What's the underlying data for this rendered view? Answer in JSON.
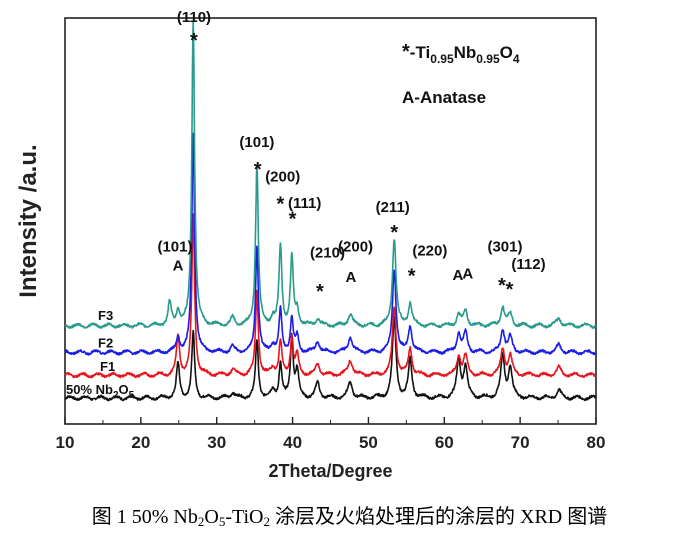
{
  "chart_data": {
    "type": "line",
    "title": "",
    "xlabel": "2Theta/Degree",
    "ylabel": "Intensity /a.u.",
    "xlim": [
      10,
      80
    ],
    "xticks": [
      10,
      20,
      30,
      40,
      50,
      60,
      70,
      80
    ],
    "yticks": [],
    "grid": false,
    "legend": {
      "placement": "top-right",
      "entries": [
        {
          "symbol": "*",
          "text": "-Ti",
          "sub1": "0.95",
          "text2": "Nb",
          "sub2": "0.95",
          "text3": "O",
          "sub3": "4"
        },
        {
          "symbol": "",
          "text": "A-Anatase"
        }
      ]
    },
    "series": [
      {
        "name": "50% Nb",
        "name_sub": "2",
        "name_tail": "O",
        "name_sub2": "5",
        "color": "#111111",
        "offset": 0.0
      },
      {
        "name": "F1",
        "color": "#e8141c",
        "offset": 0.06
      },
      {
        "name": "F2",
        "color": "#1c1ce8",
        "offset": 0.12
      },
      {
        "name": "F3",
        "color": "#2a9a8c",
        "offset": 0.19
      }
    ],
    "peaks": [
      {
        "x": 24.9,
        "h": [
          0.09,
          0.1,
          0.04,
          0.04
        ],
        "w": 0.25
      },
      {
        "x": 23.8,
        "h": [
          0.0,
          0.0,
          0.0,
          0.06
        ],
        "w": 0.25
      },
      {
        "x": 26.9,
        "h": [
          0.17,
          0.42,
          0.58,
          0.8
        ],
        "w": 0.22
      },
      {
        "x": 32.1,
        "h": [
          0.015,
          0.015,
          0.015,
          0.02
        ],
        "w": 0.3
      },
      {
        "x": 35.3,
        "h": [
          0.15,
          0.22,
          0.28,
          0.42
        ],
        "w": 0.22
      },
      {
        "x": 37.4,
        "h": [
          0.02,
          0.02,
          0.02,
          0.02
        ],
        "w": 0.3
      },
      {
        "x": 38.4,
        "h": [
          0.09,
          0.09,
          0.11,
          0.21
        ],
        "w": 0.22
      },
      {
        "x": 39.9,
        "h": [
          0.16,
          0.1,
          0.09,
          0.18
        ],
        "w": 0.22
      },
      {
        "x": 40.6,
        "h": [
          0.07,
          0.05,
          0.04,
          0.04
        ],
        "w": 0.25
      },
      {
        "x": 43.3,
        "h": [
          0.04,
          0.03,
          0.03,
          0.02
        ],
        "w": 0.3
      },
      {
        "x": 47.6,
        "h": [
          0.04,
          0.04,
          0.04,
          0.03
        ],
        "w": 0.35
      },
      {
        "x": 53.4,
        "h": [
          0.21,
          0.18,
          0.22,
          0.23
        ],
        "w": 0.28
      },
      {
        "x": 55.5,
        "h": [
          0.1,
          0.07,
          0.07,
          0.06
        ],
        "w": 0.28
      },
      {
        "x": 61.9,
        "h": [
          0.1,
          0.05,
          0.05,
          0.03
        ],
        "w": 0.3
      },
      {
        "x": 62.8,
        "h": [
          0.08,
          0.05,
          0.05,
          0.04
        ],
        "w": 0.3
      },
      {
        "x": 67.7,
        "h": [
          0.11,
          0.07,
          0.06,
          0.05
        ],
        "w": 0.3
      },
      {
        "x": 68.7,
        "h": [
          0.08,
          0.05,
          0.04,
          0.03
        ],
        "w": 0.3
      },
      {
        "x": 75.1,
        "h": [
          0.02,
          0.02,
          0.02,
          0.02
        ],
        "w": 0.35
      }
    ],
    "annotations": [
      {
        "text": "(110)",
        "x": 27.0,
        "y": 0.99
      },
      {
        "text": "*",
        "x": 27.0,
        "y": 0.95
      },
      {
        "text": "(101)",
        "x": 24.5,
        "y": 0.385
      },
      {
        "text": "A",
        "x": 24.9,
        "y": 0.335
      },
      {
        "text": "(101)",
        "x": 35.3,
        "y": 0.66
      },
      {
        "text": "*",
        "x": 35.4,
        "y": 0.61
      },
      {
        "text": "(200)",
        "x": 38.7,
        "y": 0.57
      },
      {
        "text": "*",
        "x": 38.4,
        "y": 0.52
      },
      {
        "text": "(111)",
        "x": 41.6,
        "y": 0.5
      },
      {
        "text": "*",
        "x": 40.0,
        "y": 0.48
      },
      {
        "text": "(210)",
        "x": 44.6,
        "y": 0.37
      },
      {
        "text": "*",
        "x": 43.6,
        "y": 0.29
      },
      {
        "text": "(200)",
        "x": 48.3,
        "y": 0.385
      },
      {
        "text": "A",
        "x": 47.7,
        "y": 0.305
      },
      {
        "text": "(211)",
        "x": 53.2,
        "y": 0.49
      },
      {
        "text": "*",
        "x": 53.4,
        "y": 0.445
      },
      {
        "text": "(220)",
        "x": 58.1,
        "y": 0.375
      },
      {
        "text": "*",
        "x": 55.7,
        "y": 0.33
      },
      {
        "text": "A",
        "x": 61.8,
        "y": 0.31
      },
      {
        "text": "A",
        "x": 63.1,
        "y": 0.315
      },
      {
        "text": "(301)",
        "x": 68.0,
        "y": 0.385
      },
      {
        "text": "*",
        "x": 67.6,
        "y": 0.305
      },
      {
        "text": "*",
        "x": 68.6,
        "y": 0.295
      },
      {
        "text": "(112)",
        "x": 71.1,
        "y": 0.34
      }
    ]
  },
  "caption": {
    "prefix": "图 1 50% Nb",
    "sub1": "2",
    "mid1": "O",
    "sub2": "5",
    "mid2": "-TiO",
    "sub3": "2",
    "suffix": " 涂层及火焰处理后的涂层的 XRD 图谱"
  }
}
